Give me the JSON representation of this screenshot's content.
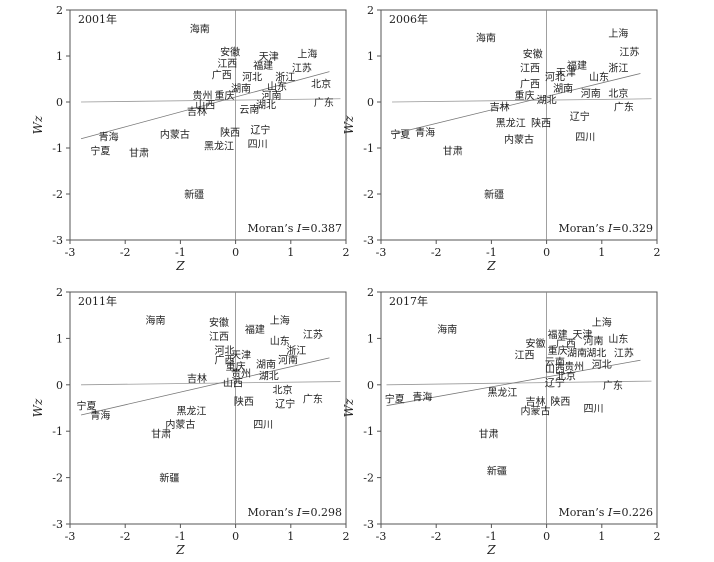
{
  "chart_data": [
    {
      "type": "scatter",
      "year_label": "2001年",
      "moran_prefix": "Moran’s ",
      "moran_var": "I",
      "moran_value": "=0.387",
      "xlabel": "Z",
      "ylabel": "Wz",
      "xlim": [
        -3,
        2
      ],
      "ylim": [
        -3,
        2
      ],
      "xticks": [
        "-3",
        "-2",
        "-1",
        "0",
        "1",
        "2"
      ],
      "yticks": [
        "-3",
        "-2",
        "-1",
        "0",
        "1",
        "2"
      ],
      "trend_line": [
        [
          -2.8,
          -0.8
        ],
        [
          1.7,
          0.66
        ]
      ],
      "flat_line": [
        [
          -2.8,
          0.0
        ],
        [
          1.9,
          0.07
        ]
      ],
      "points": [
        {
          "label": "海南",
          "x": -0.65,
          "y": 1.6
        },
        {
          "label": "安徽",
          "x": -0.1,
          "y": 1.1
        },
        {
          "label": "天津",
          "x": 0.6,
          "y": 1.0
        },
        {
          "label": "上海",
          "x": 1.3,
          "y": 1.05
        },
        {
          "label": "江西",
          "x": -0.15,
          "y": 0.85
        },
        {
          "label": "福建",
          "x": 0.5,
          "y": 0.8
        },
        {
          "label": "江苏",
          "x": 1.2,
          "y": 0.75
        },
        {
          "label": "广西",
          "x": -0.25,
          "y": 0.6
        },
        {
          "label": "河北",
          "x": 0.3,
          "y": 0.55
        },
        {
          "label": "浙江",
          "x": 0.9,
          "y": 0.55
        },
        {
          "label": "湖南",
          "x": 0.1,
          "y": 0.3
        },
        {
          "label": "山东",
          "x": 0.75,
          "y": 0.35
        },
        {
          "label": "北京",
          "x": 1.55,
          "y": 0.4
        },
        {
          "label": "河南",
          "x": 0.65,
          "y": 0.15
        },
        {
          "label": "贵州",
          "x": -0.6,
          "y": 0.15
        },
        {
          "label": "重庆",
          "x": -0.2,
          "y": 0.15
        },
        {
          "label": "广东",
          "x": 1.6,
          "y": 0.0
        },
        {
          "label": "山西",
          "x": -0.55,
          "y": -0.05
        },
        {
          "label": "吉林",
          "x": -0.7,
          "y": -0.2
        },
        {
          "label": "湖北",
          "x": 0.55,
          "y": -0.05
        },
        {
          "label": "云南",
          "x": 0.25,
          "y": -0.15
        },
        {
          "label": "辽宁",
          "x": 0.45,
          "y": -0.6
        },
        {
          "label": "陕西",
          "x": -0.1,
          "y": -0.65
        },
        {
          "label": "内蒙古",
          "x": -1.1,
          "y": -0.7
        },
        {
          "label": "四川",
          "x": 0.4,
          "y": -0.9
        },
        {
          "label": "黑龙江",
          "x": -0.3,
          "y": -0.95
        },
        {
          "label": "青海",
          "x": -2.3,
          "y": -0.75
        },
        {
          "label": "宁夏",
          "x": -2.45,
          "y": -1.05
        },
        {
          "label": "甘肃",
          "x": -1.75,
          "y": -1.1
        },
        {
          "label": "新疆",
          "x": -0.75,
          "y": -2.0
        }
      ]
    },
    {
      "type": "scatter",
      "year_label": "2006年",
      "moran_prefix": "Moran’s ",
      "moran_var": "I",
      "moran_value": "=0.329",
      "xlabel": "Z",
      "ylabel": "Wz",
      "xlim": [
        -3,
        2
      ],
      "ylim": [
        -3,
        2
      ],
      "xticks": [
        "-3",
        "-2",
        "-1",
        "0",
        "1",
        "2"
      ],
      "yticks": [
        "-3",
        "-2",
        "-1",
        "0",
        "1",
        "2"
      ],
      "trend_line": [
        [
          -2.8,
          -0.7
        ],
        [
          1.7,
          0.62
        ]
      ],
      "flat_line": [
        [
          -2.8,
          0.0
        ],
        [
          1.9,
          0.07
        ]
      ],
      "points": [
        {
          "label": "上海",
          "x": 1.3,
          "y": 1.5
        },
        {
          "label": "海南",
          "x": -1.1,
          "y": 1.4
        },
        {
          "label": "江苏",
          "x": 1.5,
          "y": 1.1
        },
        {
          "label": "安徽",
          "x": -0.25,
          "y": 1.05
        },
        {
          "label": "福建",
          "x": 0.55,
          "y": 0.8
        },
        {
          "label": "江西",
          "x": -0.3,
          "y": 0.75
        },
        {
          "label": "浙江",
          "x": 1.3,
          "y": 0.75
        },
        {
          "label": "天津",
          "x": 0.35,
          "y": 0.65
        },
        {
          "label": "河北",
          "x": 0.15,
          "y": 0.55
        },
        {
          "label": "山东",
          "x": 0.95,
          "y": 0.55
        },
        {
          "label": "广西",
          "x": -0.3,
          "y": 0.4
        },
        {
          "label": "湖南",
          "x": 0.3,
          "y": 0.3
        },
        {
          "label": "河南",
          "x": 0.8,
          "y": 0.2
        },
        {
          "label": "北京",
          "x": 1.3,
          "y": 0.2
        },
        {
          "label": "重庆",
          "x": -0.4,
          "y": 0.15
        },
        {
          "label": "湖北",
          "x": 0.0,
          "y": 0.05
        },
        {
          "label": "吉林",
          "x": -0.85,
          "y": -0.1
        },
        {
          "label": "广东",
          "x": 1.4,
          "y": -0.1
        },
        {
          "label": "辽宁",
          "x": 0.6,
          "y": -0.3
        },
        {
          "label": "黑龙江",
          "x": -0.65,
          "y": -0.45
        },
        {
          "label": "陕西",
          "x": -0.1,
          "y": -0.45
        },
        {
          "label": "四川",
          "x": 0.7,
          "y": -0.75
        },
        {
          "label": "宁夏",
          "x": -2.65,
          "y": -0.7
        },
        {
          "label": "青海",
          "x": -2.2,
          "y": -0.65
        },
        {
          "label": "内蒙古",
          "x": -0.5,
          "y": -0.8
        },
        {
          "label": "甘肃",
          "x": -1.7,
          "y": -1.05
        },
        {
          "label": "新疆",
          "x": -0.95,
          "y": -2.0
        }
      ]
    },
    {
      "type": "scatter",
      "year_label": "2011年",
      "moran_prefix": "Moran’s ",
      "moran_var": "I",
      "moran_value": "=0.298",
      "xlabel": "Z",
      "ylabel": "Wz",
      "xlim": [
        -3,
        2
      ],
      "ylim": [
        -3,
        2
      ],
      "xticks": [
        "-3",
        "-2",
        "-1",
        "0",
        "1",
        "2"
      ],
      "yticks": [
        "-3",
        "-2",
        "-1",
        "0",
        "1",
        "2"
      ],
      "trend_line": [
        [
          -2.8,
          -0.65
        ],
        [
          1.7,
          0.58
        ]
      ],
      "flat_line": [
        [
          -2.8,
          0.0
        ],
        [
          1.9,
          0.07
        ]
      ],
      "points": [
        {
          "label": "海南",
          "x": -1.45,
          "y": 1.4
        },
        {
          "label": "上海",
          "x": 0.8,
          "y": 1.4
        },
        {
          "label": "安徽",
          "x": -0.3,
          "y": 1.35
        },
        {
          "label": "福建",
          "x": 0.35,
          "y": 1.2
        },
        {
          "label": "江苏",
          "x": 1.4,
          "y": 1.1
        },
        {
          "label": "江西",
          "x": -0.3,
          "y": 1.05
        },
        {
          "label": "山东",
          "x": 0.8,
          "y": 0.95
        },
        {
          "label": "浙江",
          "x": 1.1,
          "y": 0.75
        },
        {
          "label": "河北",
          "x": -0.2,
          "y": 0.75
        },
        {
          "label": "天津",
          "x": 0.1,
          "y": 0.65
        },
        {
          "label": "广西",
          "x": -0.2,
          "y": 0.55
        },
        {
          "label": "河南",
          "x": 0.95,
          "y": 0.55
        },
        {
          "label": "湖南",
          "x": 0.55,
          "y": 0.45
        },
        {
          "label": "重庆",
          "x": 0.0,
          "y": 0.4
        },
        {
          "label": "贵州",
          "x": 0.1,
          "y": 0.25
        },
        {
          "label": "湖北",
          "x": 0.6,
          "y": 0.2
        },
        {
          "label": "吉林",
          "x": -0.7,
          "y": 0.15
        },
        {
          "label": "山西",
          "x": -0.05,
          "y": 0.05
        },
        {
          "label": "北京",
          "x": 0.85,
          "y": -0.1
        },
        {
          "label": "广东",
          "x": 1.4,
          "y": -0.3
        },
        {
          "label": "辽宁",
          "x": 0.9,
          "y": -0.4
        },
        {
          "label": "陕西",
          "x": 0.15,
          "y": -0.35
        },
        {
          "label": "宁夏",
          "x": -2.7,
          "y": -0.45
        },
        {
          "label": "青海",
          "x": -2.45,
          "y": -0.65
        },
        {
          "label": "黑龙江",
          "x": -0.8,
          "y": -0.55
        },
        {
          "label": "内蒙古",
          "x": -1.0,
          "y": -0.85
        },
        {
          "label": "四川",
          "x": 0.5,
          "y": -0.85
        },
        {
          "label": "甘肃",
          "x": -1.35,
          "y": -1.05
        },
        {
          "label": "新疆",
          "x": -1.2,
          "y": -2.0
        }
      ]
    },
    {
      "type": "scatter",
      "year_label": "2017年",
      "moran_prefix": "Moran’s ",
      "moran_var": "I",
      "moran_value": "=0.226",
      "xlabel": "Z",
      "ylabel": "Wz",
      "xlim": [
        -3,
        2
      ],
      "ylim": [
        -3,
        2
      ],
      "xticks": [
        "-3",
        "-2",
        "-1",
        "0",
        "1",
        "2"
      ],
      "yticks": [
        "-3",
        "-2",
        "-1",
        "0",
        "1",
        "2"
      ],
      "trend_line": [
        [
          -2.9,
          -0.45
        ],
        [
          1.7,
          0.53
        ]
      ],
      "flat_line": [
        [
          -2.9,
          0.0
        ],
        [
          1.9,
          0.08
        ]
      ],
      "points": [
        {
          "label": "上海",
          "x": 1.0,
          "y": 1.35
        },
        {
          "label": "海南",
          "x": -1.8,
          "y": 1.2
        },
        {
          "label": "天津",
          "x": 0.65,
          "y": 1.1
        },
        {
          "label": "福建",
          "x": 0.2,
          "y": 1.1
        },
        {
          "label": "山东",
          "x": 1.3,
          "y": 1.0
        },
        {
          "label": "河南",
          "x": 0.85,
          "y": 0.95
        },
        {
          "label": "安徽",
          "x": -0.2,
          "y": 0.9
        },
        {
          "label": "广西",
          "x": 0.35,
          "y": 0.9
        },
        {
          "label": "重庆",
          "x": 0.2,
          "y": 0.75
        },
        {
          "label": "湖南",
          "x": 0.55,
          "y": 0.7
        },
        {
          "label": "湖北",
          "x": 0.9,
          "y": 0.7
        },
        {
          "label": "江苏",
          "x": 1.4,
          "y": 0.7
        },
        {
          "label": "江西",
          "x": -0.4,
          "y": 0.65
        },
        {
          "label": "河北",
          "x": 1.0,
          "y": 0.45
        },
        {
          "label": "贵州",
          "x": 0.5,
          "y": 0.4
        },
        {
          "label": "云南",
          "x": 0.15,
          "y": 0.5
        },
        {
          "label": "山西",
          "x": 0.15,
          "y": 0.35
        },
        {
          "label": "北京",
          "x": 0.35,
          "y": 0.2
        },
        {
          "label": "辽宁",
          "x": 0.15,
          "y": 0.05
        },
        {
          "label": "广东",
          "x": 1.2,
          "y": 0.0
        },
        {
          "label": "黑龙江",
          "x": -0.8,
          "y": -0.15
        },
        {
          "label": "宁夏",
          "x": -2.75,
          "y": -0.3
        },
        {
          "label": "青海",
          "x": -2.25,
          "y": -0.25
        },
        {
          "label": "吉林",
          "x": -0.2,
          "y": -0.35
        },
        {
          "label": "陕西",
          "x": 0.25,
          "y": -0.35
        },
        {
          "label": "四川",
          "x": 0.85,
          "y": -0.5
        },
        {
          "label": "内蒙古",
          "x": -0.2,
          "y": -0.55
        },
        {
          "label": "甘肃",
          "x": -1.05,
          "y": -1.05
        },
        {
          "label": "新疆",
          "x": -0.9,
          "y": -1.85
        }
      ]
    }
  ]
}
